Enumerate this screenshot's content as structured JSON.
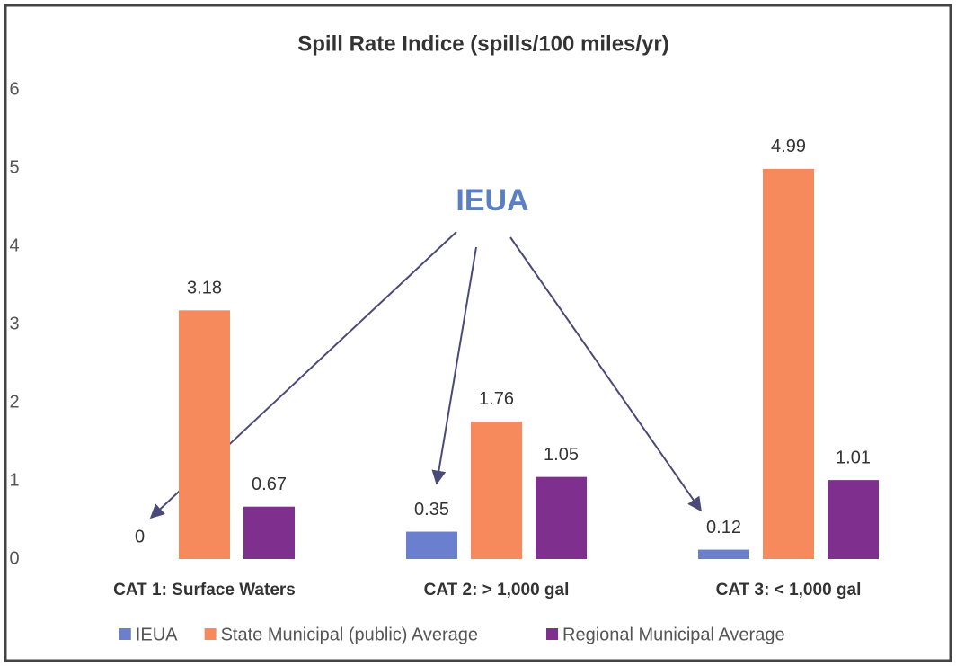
{
  "chart_data": {
    "type": "bar",
    "title": "Spill Rate Indice (spills/100 miles/yr)",
    "categories": [
      "CAT 1: Surface Waters",
      "CAT 2: > 1,000 gal",
      "CAT 3: < 1,000 gal"
    ],
    "series": [
      {
        "name": "IEUA",
        "color": "#6b7fcf",
        "values": [
          0,
          0.35,
          0.12
        ]
      },
      {
        "name": "State Municipal (public) Average",
        "color": "#f68a5c",
        "values": [
          3.18,
          1.76,
          4.99
        ]
      },
      {
        "name": "Regional Municipal Average",
        "color": "#7f2f8d",
        "values": [
          0.67,
          1.05,
          1.01
        ]
      }
    ],
    "ylim": [
      0,
      6
    ],
    "yticks": [
      0,
      1,
      2,
      3,
      4,
      5,
      6
    ],
    "grid": false,
    "legend": "bottom",
    "annotation": "IEUA"
  }
}
